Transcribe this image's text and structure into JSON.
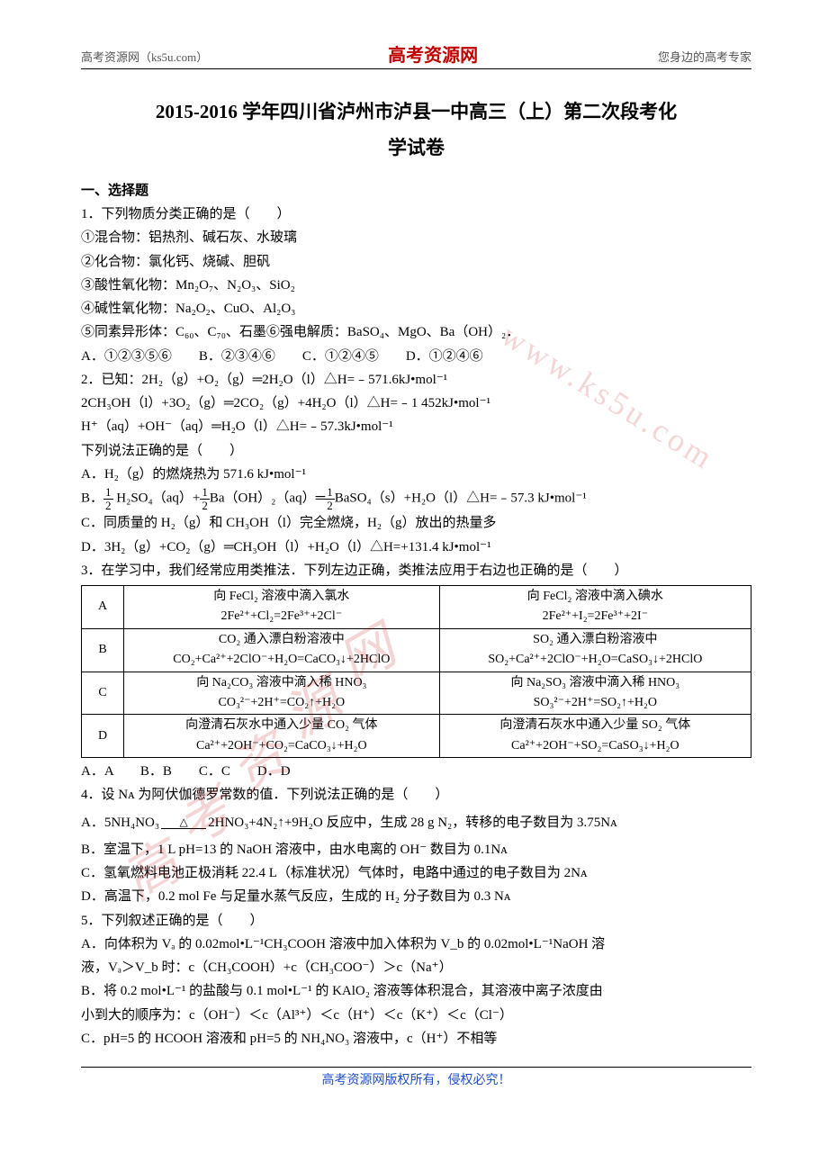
{
  "header": {
    "left": "高考资源网（ks5u.com）",
    "center": "高考资源网",
    "right": "您身边的高考专家"
  },
  "title_line1": "2015-2016 学年四川省泸州市泸县一中高三（上）第二次段考化",
  "title_line2": "学试卷",
  "section1": "一、选择题",
  "q1": {
    "stem": "1．下列物质分类正确的是（　　）",
    "l1": "①混合物：铝热剂、碱石灰、水玻璃",
    "l2": "②化合物：氯化钙、烧碱、胆矾",
    "l3": "③酸性氧化物：Mn₂O₇、N₂O₃、SiO₂",
    "l4": "④碱性氧化物：Na₂O₂、CuO、Al₂O₃",
    "l5": "⑤同素异形体：C₆₀、C₇₀、石墨⑥强电解质：BaSO₄、MgO、Ba（OH）₂．",
    "opts": "A．①②③⑤⑥　　B．②③④⑥　　C．①②④⑤　　D．①②④⑥"
  },
  "q2": {
    "stem": "2．已知：2H₂（g）+O₂（g）═2H₂O（l）△H=﹣571.6kJ•mol⁻¹",
    "l2": "2CH₃OH（l）+3O₂（g）═2CO₂（g）+4H₂O（l）△H=﹣1 452kJ•mol⁻¹",
    "l3": "H⁺（aq）+OH⁻（aq）═H₂O（l）△H=﹣57.3kJ•mol⁻¹",
    "l4": "下列说法正确的是（　　）",
    "a": "A．H₂（g）的燃烧热为 571.6 kJ•mol⁻¹",
    "b_pre": "B．",
    "b_mid1": " H₂SO₄（aq）+",
    "b_mid2": "Ba（OH）₂（aq）═",
    "b_mid3": "BaSO₄（s）+H₂O（l）△H=﹣57.3 kJ•mol⁻¹",
    "c": "C．同质量的 H₂（g）和 CH₃OH（l）完全燃烧，H₂（g）放出的热量多",
    "d": "D．3H₂（g）+CO₂（g）═CH₃OH（l）+H₂O（l）△H=+131.4 kJ•mol⁻¹"
  },
  "q3": {
    "stem": "3．在学习中，我们经常应用类推法．下列左边正确，类推法应用于右边也正确的是（　　）",
    "rows": [
      {
        "lab": "A",
        "left_t": "向 FeCl₂ 溶液中滴入氯水",
        "left_b": "2Fe²⁺+Cl₂=2Fe³⁺+2Cl⁻",
        "right_t": "向 FeCl₂ 溶液中滴入碘水",
        "right_b": "2Fe²⁺+I₂=2Fe³⁺+2I⁻"
      },
      {
        "lab": "B",
        "left_t": "CO₂ 通入漂白粉溶液中",
        "left_b": "CO₂+Ca²⁺+2ClO⁻+H₂O=CaCO₃↓+2HClO",
        "right_t": "SO₂ 通入漂白粉溶液中",
        "right_b": "SO₂+Ca²⁺+2ClO⁻+H₂O=CaSO₃↓+2HClO"
      },
      {
        "lab": "C",
        "left_t": "向 Na₂CO₃ 溶液中滴入稀 HNO₃",
        "left_b": "CO₃²⁻+2H⁺=CO₂↑+H₂O",
        "right_t": "向 Na₂SO₃ 溶液中滴入稀 HNO₃",
        "right_b": "SO₃²⁻+2H⁺=SO₂↑+H₂O"
      },
      {
        "lab": "D",
        "left_t": "向澄清石灰水中通入少量 CO₂ 气体",
        "left_b": "Ca²⁺+2OH⁻+CO₂=CaCO₃↓+H₂O",
        "right_t": "向澄清石灰水中通入少量 SO₂ 气体",
        "right_b": "Ca²⁺+2OH⁻+SO₂=CaSO₃↓+H₂O"
      }
    ],
    "opts": "A．A　　B．B　　C．C　　D．D"
  },
  "q4": {
    "stem": "4．设 Nᴀ 为阿伏伽德罗常数的值．下列说法正确的是（　　）",
    "a_pre": "A．5NH₄NO₃",
    "a_tri": "△",
    "a_post": "2HNO₃+4N₂↑+9H₂O 反应中，生成 28 g N₂，转移的电子数目为 3.75Nᴀ",
    "b": "B．室温下，1 L pH=13 的 NaOH 溶液中，由水电离的 OH⁻ 数目为 0.1Nᴀ",
    "c": "C．氢氧燃料电池正极消耗 22.4 L（标准状况）气体时，电路中通过的电子数目为 2Nᴀ",
    "d": "D．高温下，0.2 mol Fe 与足量水蒸气反应，生成的 H₂ 分子数目为 0.3 Nᴀ"
  },
  "q5": {
    "stem": "5．下列叙述正确的是（　　）",
    "a1": "A．向体积为 Vₐ 的 0.02mol•L⁻¹CH₃COOH 溶液中加入体积为 V_b 的 0.02mol•L⁻¹NaOH 溶",
    "a2": "液，Vₐ＞V_b 时：c（CH₃COOH）+c（CH₃COO⁻）＞c（Na⁺）",
    "b1": "B．将 0.2 mol•L⁻¹ 的盐酸与 0.1 mol•L⁻¹ 的 KAlO₂ 溶液等体积混合，其溶液中离子浓度由",
    "b2": "小到大的顺序为：c（OH⁻）＜c（Al³⁺）＜c（H⁺）＜c（K⁺）＜c（Cl⁻）",
    "c": "C．pH=5 的 HCOOH 溶液和 pH=5 的 NH₄NO₃ 溶液中，c（H⁺）不相等"
  },
  "footer": "高考资源网版权所有，侵权必究！",
  "watermarks": [
    "www.ks5u.com",
    "高",
    "考",
    "资",
    "源",
    "网"
  ]
}
